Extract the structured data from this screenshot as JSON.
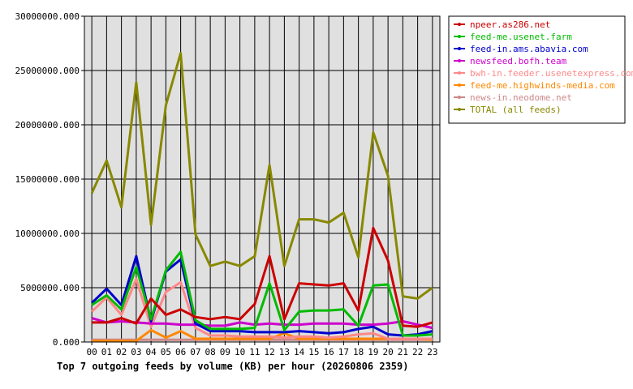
{
  "chart_data": {
    "type": "line",
    "title": "Top 7 outgoing feeds by volume (KB) per hour (20260806 2359)",
    "x": [
      "00",
      "01",
      "02",
      "03",
      "04",
      "05",
      "06",
      "07",
      "08",
      "09",
      "10",
      "11",
      "12",
      "13",
      "14",
      "15",
      "16",
      "17",
      "18",
      "19",
      "20",
      "21",
      "22",
      "23"
    ],
    "ylim": [
      0,
      30000000
    ],
    "yticks": [
      "0.000",
      "5000000.000",
      "10000000.000",
      "15000000.000",
      "20000000.000",
      "25000000.000",
      "30000000.000"
    ],
    "ytick_values": [
      0,
      5000000,
      10000000,
      15000000,
      20000000,
      25000000,
      30000000
    ],
    "grid": true,
    "legend_position": "top-right",
    "series": [
      {
        "name": "npeer.as286.net",
        "color": "#cc0000",
        "values": [
          1800000,
          1800000,
          2200000,
          1700000,
          4000000,
          2500000,
          3000000,
          2300000,
          2100000,
          2300000,
          2100000,
          3500000,
          7900000,
          2100000,
          5400000,
          5300000,
          5200000,
          5400000,
          2900000,
          10500000,
          7500000,
          1500000,
          1400000,
          1800000
        ]
      },
      {
        "name": "feed-me.usenet.farm",
        "color": "#00bb00",
        "values": [
          3400000,
          4300000,
          3000000,
          6900000,
          2100000,
          6600000,
          8300000,
          2000000,
          1200000,
          1200000,
          1200000,
          1300000,
          5400000,
          1100000,
          2800000,
          2900000,
          2900000,
          3000000,
          1500000,
          5200000,
          5300000,
          600000,
          600000,
          700000
        ]
      },
      {
        "name": "feed-in.ams.abavia.com",
        "color": "#0000cc",
        "values": [
          3600000,
          4900000,
          3400000,
          7900000,
          1900000,
          6500000,
          7600000,
          1700000,
          1000000,
          1000000,
          1000000,
          900000,
          900000,
          900000,
          1000000,
          900000,
          800000,
          900000,
          1200000,
          1400000,
          700000,
          600000,
          700000,
          1000000
        ]
      },
      {
        "name": "newsfeed.bofh.team",
        "color": "#cc00cc",
        "values": [
          2200000,
          1800000,
          1900000,
          1800000,
          1700000,
          1700000,
          1600000,
          1600000,
          1500000,
          1500000,
          1800000,
          1600000,
          1700000,
          1600000,
          1600000,
          1700000,
          1700000,
          1700000,
          1600000,
          1600000,
          1700000,
          1900000,
          1600000,
          1300000
        ]
      },
      {
        "name": "bwh-in.feeder.usenetexpress.com",
        "color": "#ff8888",
        "values": [
          2800000,
          4100000,
          2500000,
          5800000,
          1400000,
          4600000,
          5500000,
          1300000,
          600000,
          600000,
          500000,
          500000,
          500000,
          400000,
          500000,
          500000,
          400000,
          500000,
          700000,
          800000,
          300000,
          300000,
          300000,
          300000
        ]
      },
      {
        "name": "feed-me.highwinds-media.com",
        "color": "#ff8800",
        "values": [
          100000,
          100000,
          100000,
          100000,
          1100000,
          400000,
          1000000,
          300000,
          300000,
          300000,
          300000,
          300000,
          300000,
          800000,
          300000,
          300000,
          300000,
          300000,
          300000,
          300000,
          300000,
          300000,
          300000,
          200000
        ]
      },
      {
        "name": "news-in.neodome.net",
        "color": "#cc8888",
        "values": [
          200000,
          200000,
          200000,
          200000,
          200000,
          200000,
          200000,
          200000,
          200000,
          200000,
          200000,
          200000,
          200000,
          200000,
          200000,
          200000,
          200000,
          200000,
          200000,
          200000,
          200000,
          200000,
          200000,
          200000
        ]
      },
      {
        "name": "TOTAL (all feeds)",
        "color": "#888800",
        "values": [
          13700000,
          16700000,
          12400000,
          23900000,
          10800000,
          21800000,
          26600000,
          9900000,
          7000000,
          7400000,
          7000000,
          7900000,
          16300000,
          7000000,
          11300000,
          11300000,
          11000000,
          11900000,
          7800000,
          19300000,
          15300000,
          4200000,
          4000000,
          5000000
        ]
      }
    ]
  }
}
